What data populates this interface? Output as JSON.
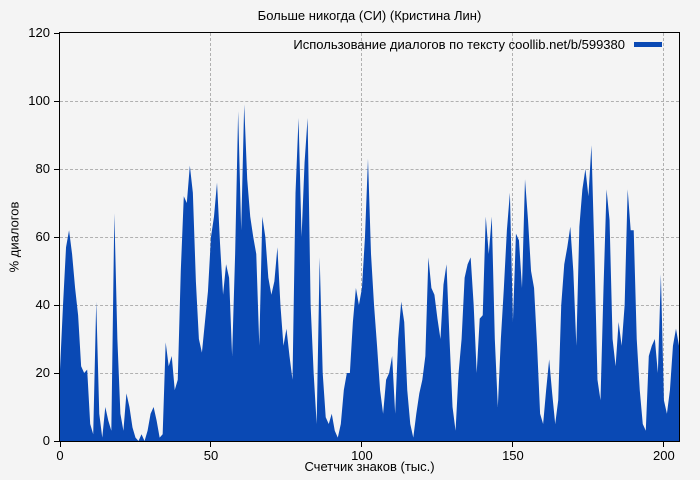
{
  "title": "Больше никогда (СИ) (Кристина Лин)",
  "legend": {
    "label": "Использование диалогов по тексту coollib.net/b/599380"
  },
  "colors": {
    "series": "#0a49b4",
    "background": "#f4f4f4",
    "grid": "#b0b0b0",
    "axis": "#000000"
  },
  "chart_data": {
    "type": "area",
    "title": "Больше никогда (СИ) (Кристина Лин)",
    "series_name": "Использование диалогов по тексту coollib.net/b/599380",
    "xlabel": "Счетчик знаков (тыс.)",
    "ylabel": "% диалогов",
    "xlim": [
      0,
      205
    ],
    "ylim": [
      0,
      120
    ],
    "xticks": [
      0,
      50,
      100,
      150,
      200
    ],
    "yticks": [
      0,
      20,
      40,
      60,
      80,
      100,
      120
    ],
    "grid": true,
    "legend_position": "top-right-inside",
    "x_start": 0,
    "x_step": 1,
    "values": [
      21,
      40,
      57,
      62,
      55,
      45,
      37,
      22,
      20,
      21,
      5,
      2,
      41,
      8,
      1,
      10,
      6,
      3,
      67,
      30,
      8,
      3,
      14,
      10,
      4,
      1,
      0,
      2,
      0,
      3,
      8,
      10,
      6,
      1,
      2,
      29,
      22,
      25,
      15,
      18,
      50,
      72,
      70,
      81,
      73,
      47,
      30,
      26,
      35,
      44,
      60,
      66,
      76,
      58,
      43,
      52,
      48,
      25,
      55,
      97,
      62,
      99,
      77,
      66,
      60,
      55,
      28,
      66,
      60,
      48,
      43,
      47,
      57,
      40,
      28,
      33,
      25,
      18,
      73,
      95,
      60,
      82,
      95,
      40,
      20,
      5,
      54,
      20,
      7,
      5,
      8,
      3,
      1,
      5,
      15,
      20,
      20,
      35,
      45,
      40,
      45,
      60,
      83,
      55,
      40,
      28,
      15,
      8,
      18,
      20,
      25,
      8,
      30,
      41,
      35,
      15,
      5,
      1,
      8,
      14,
      18,
      25,
      54,
      45,
      43,
      36,
      30,
      46,
      52,
      30,
      10,
      3,
      20,
      30,
      48,
      52,
      54,
      40,
      20,
      36,
      37,
      66,
      55,
      66,
      30,
      10,
      30,
      45,
      62,
      73,
      35,
      61,
      59,
      45,
      77,
      65,
      50,
      45,
      28,
      8,
      5,
      15,
      24,
      14,
      5,
      12,
      40,
      52,
      57,
      63,
      50,
      28,
      63,
      74,
      80,
      72,
      87,
      55,
      18,
      12,
      45,
      74,
      65,
      30,
      22,
      35,
      28,
      40,
      74,
      62,
      62,
      30,
      15,
      5,
      3,
      25,
      28,
      30,
      20,
      49,
      12,
      8,
      15,
      28,
      33,
      28
    ]
  }
}
